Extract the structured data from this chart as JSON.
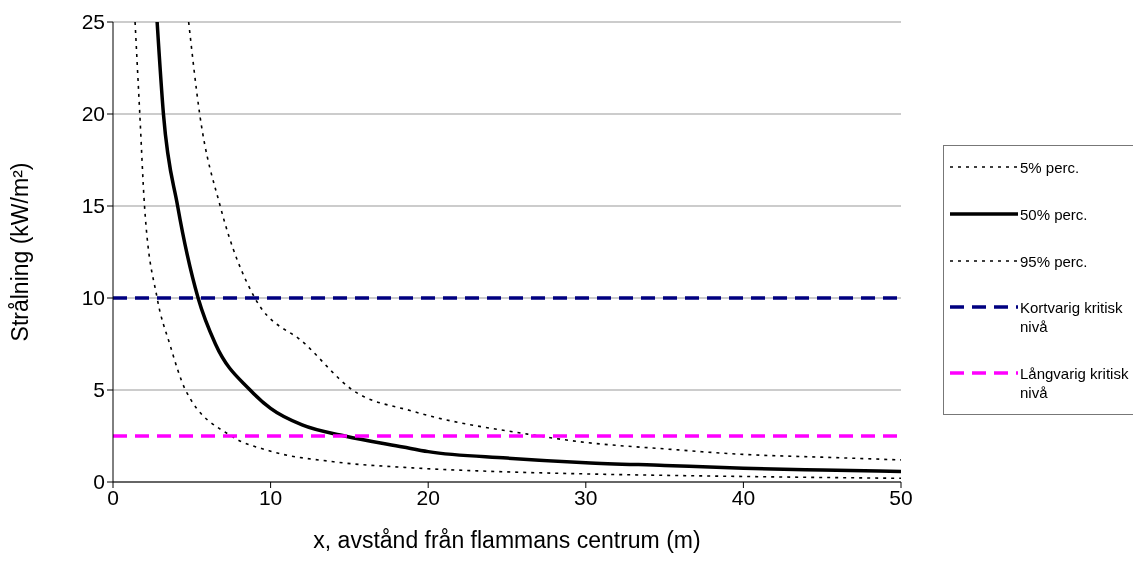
{
  "chart_data": {
    "type": "line",
    "xlabel": "x, avstånd från flammans centrum (m)",
    "ylabel": "Strålning (kW/m²)",
    "xlim": [
      0,
      50
    ],
    "xticks": [
      0,
      10,
      20,
      30,
      40,
      50
    ],
    "ylim": [
      0,
      25
    ],
    "yticks": [
      0,
      5,
      10,
      15,
      20,
      25
    ],
    "grid": "y",
    "legend": "right",
    "marker": "none",
    "series": [
      {
        "name": "5% perc.",
        "color": "#000000",
        "line_style": "dotted",
        "x": [
          1.4,
          1.7,
          2.0,
          2.8,
          3.6,
          4.6,
          7.5,
          9.9,
          14,
          19,
          25,
          30,
          40,
          50
        ],
        "values": [
          25,
          20,
          15,
          10,
          7.5,
          5,
          2.5,
          1.7,
          1.1,
          0.77,
          0.55,
          0.44,
          0.3,
          0.2
        ]
      },
      {
        "name": "50% perc.",
        "color": "#000000",
        "line_style": "solid",
        "x": [
          2.8,
          3.2,
          4.1,
          5.4,
          6.5,
          8.7,
          10,
          12,
          14.7,
          18.4,
          20,
          25,
          30,
          35,
          40,
          45,
          50
        ],
        "values": [
          25,
          20,
          15,
          10,
          7.5,
          5,
          4,
          3.1,
          2.5,
          1.9,
          1.65,
          1.3,
          1.05,
          0.9,
          0.75,
          0.65,
          0.57
        ]
      },
      {
        "name": "95% perc.",
        "color": "#000000",
        "line_style": "dotted",
        "x": [
          4.8,
          5.5,
          6.8,
          9.0,
          12.2,
          15.2,
          19,
          26.3,
          30,
          35,
          40,
          45,
          50
        ],
        "values": [
          25,
          20,
          15,
          10,
          7.5,
          5,
          3.85,
          2.6,
          2.15,
          1.8,
          1.5,
          1.35,
          1.2
        ]
      },
      {
        "name": "Kortvarig kritisk nivå",
        "color": "#000080",
        "line_style": "dashed",
        "x": [
          0,
          50
        ],
        "values": [
          10,
          10
        ]
      },
      {
        "name": "Långvarig kritisk nivå",
        "color": "#ff00ff",
        "line_style": "dashed",
        "x": [
          0,
          50
        ],
        "values": [
          2.5,
          2.5
        ]
      }
    ]
  }
}
